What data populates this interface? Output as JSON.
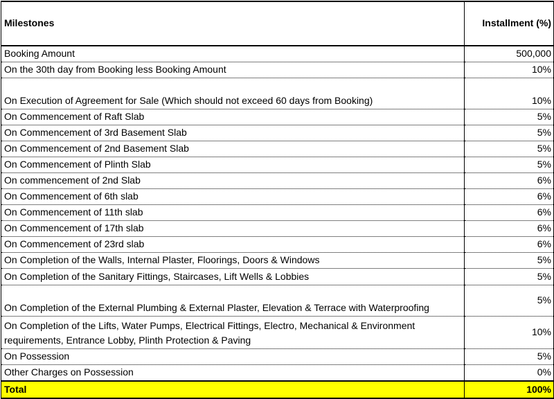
{
  "table": {
    "header": [
      "Milestones",
      "Installment (%)"
    ],
    "rows": [
      [
        "Booking Amount",
        "500,000"
      ],
      [
        "On the 30th day from Booking less Booking Amount",
        "10%"
      ],
      [
        "On Execution of Agreement for Sale (Which should not exceed 60 days from Booking)",
        "10%"
      ],
      [
        "On Commencement of Raft Slab",
        "5%"
      ],
      [
        "On Commencement of 3rd Basement Slab",
        "5%"
      ],
      [
        "On Commencement of 2nd Basement Slab",
        "5%"
      ],
      [
        "On Commencement of Plinth Slab",
        "5%"
      ],
      [
        "On commencement of 2nd Slab",
        "6%"
      ],
      [
        "On Commencement of 6th slab",
        "6%"
      ],
      [
        "On Commencement of 11th slab",
        "6%"
      ],
      [
        "On Commencement of 17th slab",
        "6%"
      ],
      [
        "On Commencement of 23rd slab",
        "6%"
      ],
      [
        "On Completion of the Walls, Internal Plaster, Floorings, Doors & Windows",
        "5%"
      ],
      [
        "On Completion of the Sanitary Fittings, Staircases, Lift Wells & Lobbies",
        "5%"
      ],
      [
        "On Completion of the External Plumbing & External Plaster, Elevation & Terrace with Waterproofing",
        "5%"
      ],
      [
        "On Completion of the Lifts, Water Pumps, Electrical Fittings, Electro, Mechanical & Environment requirements, Entrance Lobby, Plinth Protection & Paving",
        "10%"
      ],
      [
        "On Possession",
        "5%"
      ],
      [
        "Other Charges on Possession",
        "0%"
      ]
    ],
    "total": [
      "Total",
      "100%"
    ]
  }
}
